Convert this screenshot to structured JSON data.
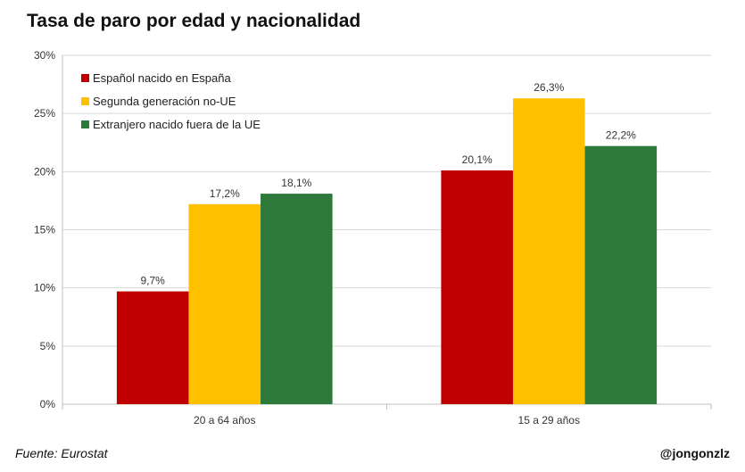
{
  "title": "Tasa de paro por edad y nacionalidad",
  "source": "Fuente: Eurostat",
  "author": "@jongonzlz",
  "chart_data": {
    "type": "bar",
    "title": "Tasa de paro por edad y nacionalidad",
    "xlabel": "",
    "ylabel": "",
    "categories": [
      "20 a 64 años",
      "15 a 29 años"
    ],
    "series": [
      {
        "name": "Español nacido en España",
        "color": "#c00000",
        "values": [
          9.7,
          20.1
        ],
        "labels": [
          "9,7%",
          "20,1%"
        ]
      },
      {
        "name": "Segunda generación no-UE",
        "color": "#ffc000",
        "values": [
          17.2,
          26.3
        ],
        "labels": [
          "17,2%",
          "26,3%"
        ]
      },
      {
        "name": "Extranjero nacido fuera de la UE",
        "color": "#2d7a3a",
        "values": [
          18.1,
          22.2
        ],
        "labels": [
          "18,1%",
          "22,2%"
        ]
      }
    ],
    "ylim": [
      0,
      30
    ],
    "yticks": [
      0,
      5,
      10,
      15,
      20,
      25,
      30
    ],
    "ytick_labels": [
      "0%",
      "5%",
      "10%",
      "15%",
      "20%",
      "25%",
      "30%"
    ],
    "grid": true,
    "legend": "top-left"
  }
}
